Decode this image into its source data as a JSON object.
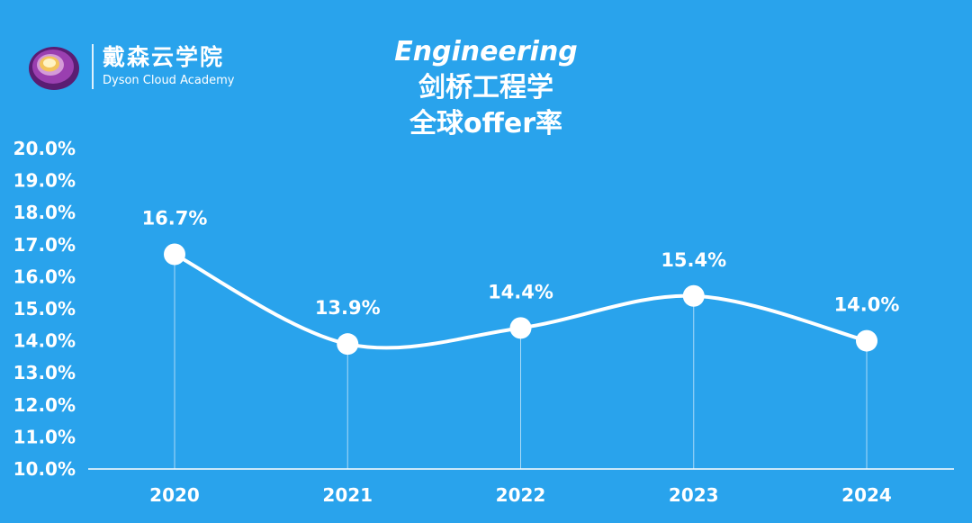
{
  "brand": {
    "name_cn": "戴森云学院",
    "name_en": "Dyson Cloud Academy"
  },
  "title": {
    "line1": "Engineering",
    "line2": "剑桥工程学",
    "line3": "全球offer率"
  },
  "colors": {
    "background": "#29a3ec",
    "line": "#ffffff",
    "text": "#ffffff",
    "logo_purple": "#7b2b8f",
    "logo_gold": "#f3c35a"
  },
  "chart_data": {
    "type": "line",
    "title": "Engineering 剑桥工程学 全球offer率",
    "categories": [
      "2020",
      "2021",
      "2022",
      "2023",
      "2024"
    ],
    "series": [
      {
        "values": [
          16.7,
          13.9,
          14.4,
          15.4,
          14.0
        ]
      }
    ],
    "data_labels": [
      "16.7%",
      "13.9%",
      "14.4%",
      "15.4%",
      "14.0%"
    ],
    "ylim": [
      10.0,
      20.0
    ],
    "y_ticks": [
      "10.0%",
      "11.0%",
      "12.0%",
      "13.0%",
      "14.0%",
      "15.0%",
      "16.0%",
      "17.0%",
      "18.0%",
      "19.0%",
      "20.0%"
    ],
    "y_tick_values": [
      10,
      11,
      12,
      13,
      14,
      15,
      16,
      17,
      18,
      19,
      20
    ],
    "smooth": true,
    "grid": false,
    "legend": "none"
  }
}
